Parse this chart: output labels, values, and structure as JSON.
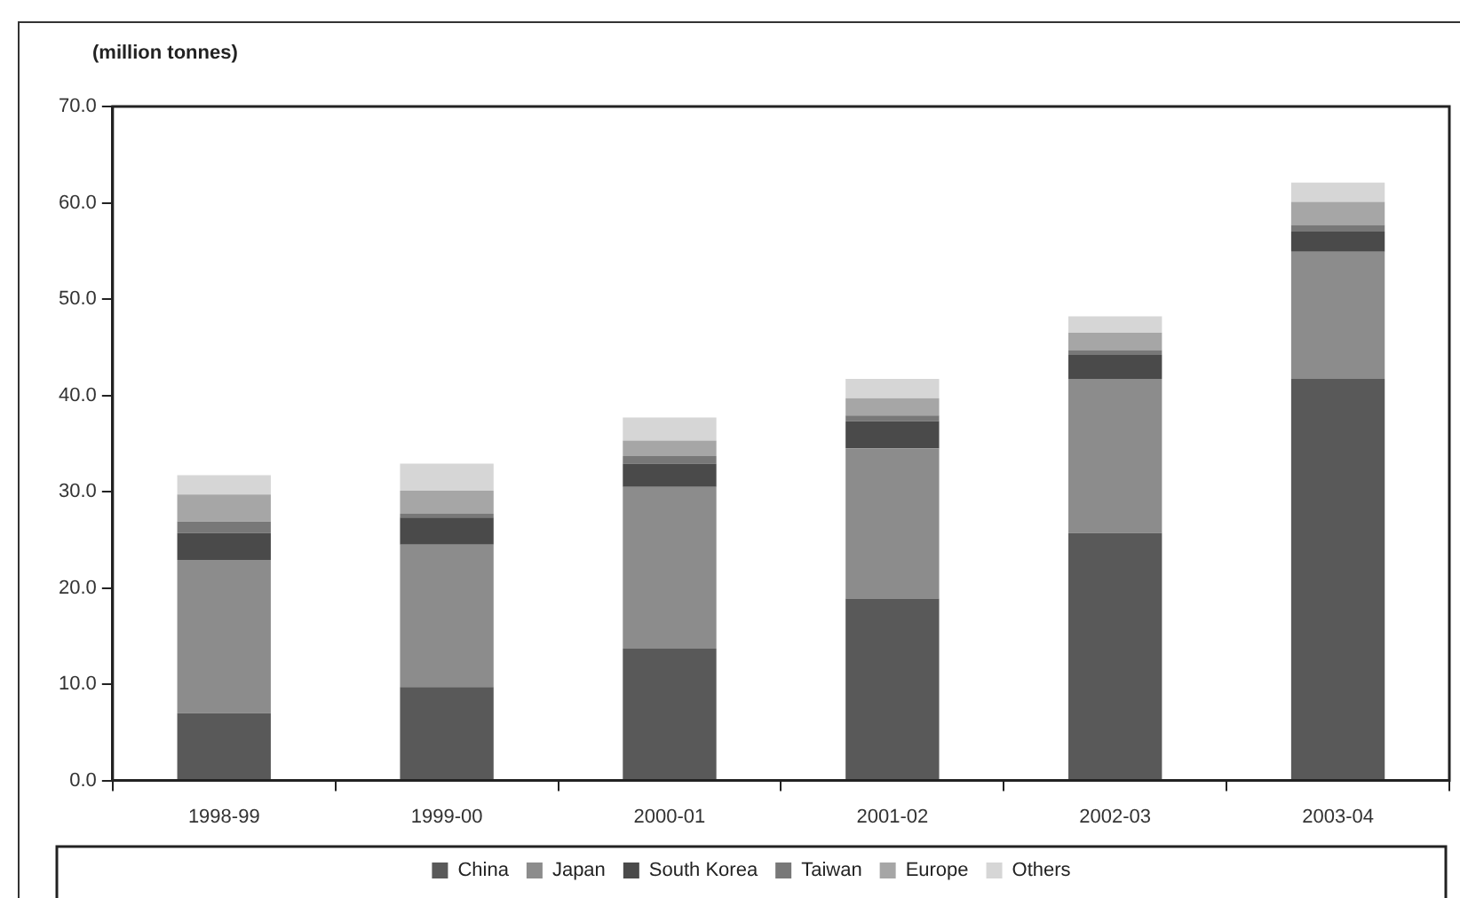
{
  "chart_data": {
    "type": "bar",
    "stacked": true,
    "ylabel": "(million tonnes)",
    "categories": [
      "1998-99",
      "1999-00",
      "2000-01",
      "2001-02",
      "2002-03",
      "2003-04"
    ],
    "series": [
      {
        "name": "China",
        "color": "#595959",
        "values": [
          7.0,
          9.7,
          13.7,
          18.9,
          25.7,
          41.7
        ]
      },
      {
        "name": "Japan",
        "color": "#8c8c8c",
        "values": [
          15.9,
          14.8,
          16.8,
          15.6,
          16.0,
          13.2
        ]
      },
      {
        "name": "South Korea",
        "color": "#4a4a4a",
        "values": [
          2.8,
          2.8,
          2.4,
          2.8,
          2.5,
          2.1
        ]
      },
      {
        "name": "Taiwan",
        "color": "#787878",
        "values": [
          1.2,
          0.4,
          0.8,
          0.6,
          0.5,
          0.7
        ]
      },
      {
        "name": "Europe",
        "color": "#a6a6a6",
        "values": [
          2.8,
          2.4,
          1.6,
          1.8,
          1.8,
          2.4
        ]
      },
      {
        "name": "Others",
        "color": "#d6d6d6",
        "values": [
          2.0,
          2.8,
          2.4,
          2.0,
          1.7,
          2.0
        ]
      }
    ],
    "ylim": [
      0,
      70
    ],
    "yticks": [
      {
        "value": 0,
        "label": "0.0"
      },
      {
        "value": 10,
        "label": "10.0"
      },
      {
        "value": 20,
        "label": "20.0"
      },
      {
        "value": 30,
        "label": "30.0"
      },
      {
        "value": 40,
        "label": "40.0"
      },
      {
        "value": 50,
        "label": "50.0"
      },
      {
        "value": 60,
        "label": "60.0"
      },
      {
        "value": 70,
        "label": "70.0"
      }
    ],
    "grid": false,
    "legend": "bottom"
  }
}
